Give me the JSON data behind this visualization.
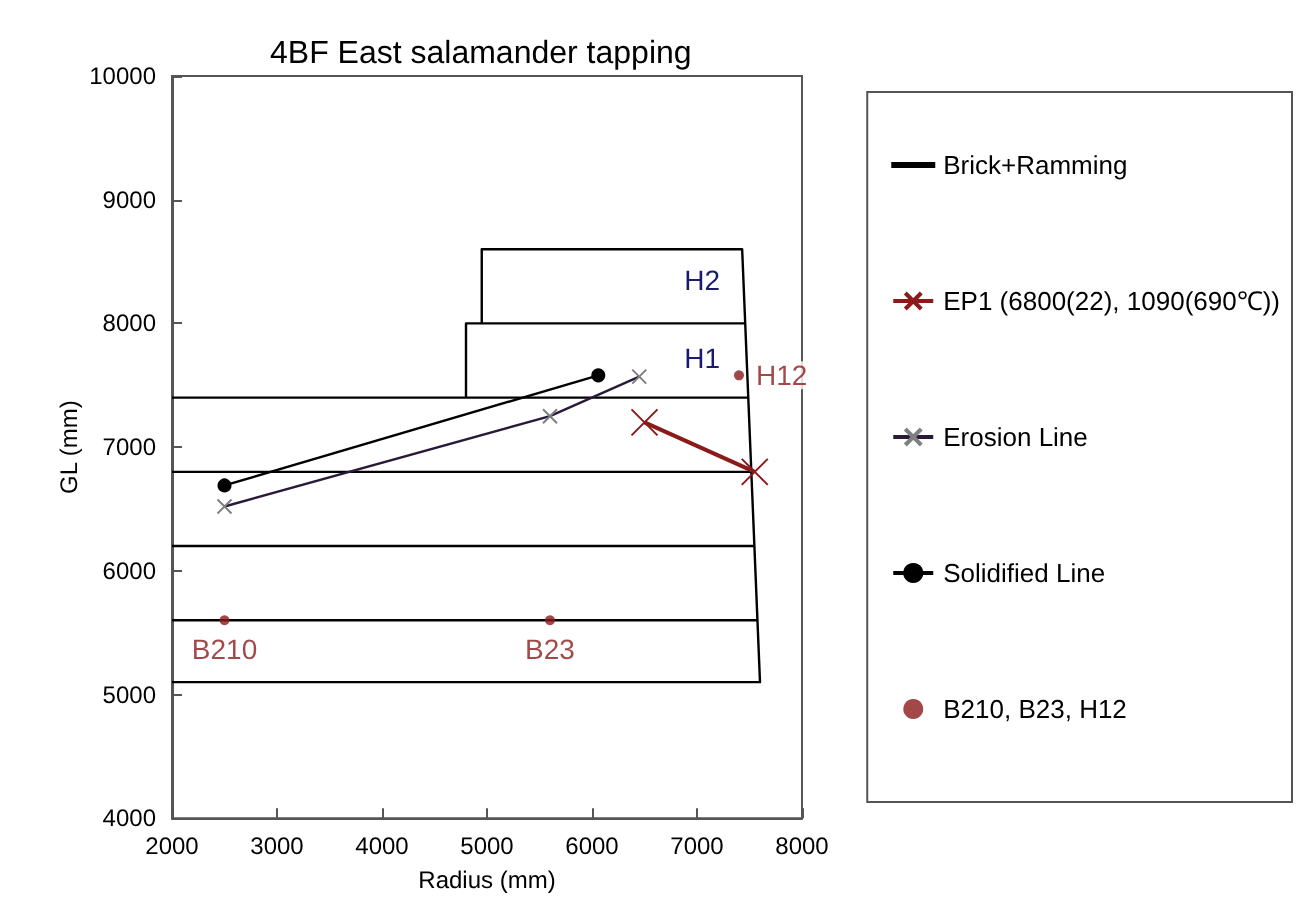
{
  "chart_data": {
    "type": "line",
    "title": "4BF East salamander tapping",
    "xlabel": "Radius (mm)",
    "ylabel": "GL (mm)",
    "xlim": [
      2000,
      8000
    ],
    "xticks": [
      2000,
      3000,
      4000,
      5000,
      6000,
      7000,
      8000
    ],
    "ylim": [
      4000,
      10000
    ],
    "yticks": [
      4000,
      5000,
      6000,
      7000,
      8000,
      9000,
      10000
    ],
    "grid": false,
    "legend": "right",
    "line_style": "solid",
    "series": [
      {
        "name": "Brick+Ramming",
        "color": "#000000",
        "marker": "none",
        "x": [
          2000,
          7600,
          7430,
          4950,
          4950,
          null,
          2000,
          7576,
          null,
          2000,
          7547,
          null,
          2000,
          7517,
          null,
          2000,
          7488,
          null,
          4800,
          4800,
          7459
        ],
        "values": [
          5100,
          5100,
          8600,
          8600,
          8000,
          null,
          5600,
          5600,
          null,
          6200,
          6200,
          null,
          6800,
          6800,
          null,
          7400,
          7400,
          null,
          7400,
          8000,
          8000
        ]
      },
      {
        "name": "EP1 (6800(22), 1090(690℃))",
        "type": "line",
        "color": "#8b1a1a",
        "marker": "cross",
        "x": [
          6500,
          7550
        ],
        "values": [
          7200,
          6800
        ]
      },
      {
        "name": "Erosion Line",
        "type": "line",
        "color": "#2a1a3a",
        "marker": "cross",
        "x": [
          2500,
          5600,
          6450
        ],
        "values": [
          6520,
          7250,
          7570
        ]
      },
      {
        "name": "Solidified Line",
        "type": "line",
        "color": "#000000",
        "marker": "circle",
        "x": [
          2500,
          6060
        ],
        "values": [
          6690,
          7580
        ]
      },
      {
        "name": "B210, B23, H12",
        "type": "scatter",
        "color": "#8b1a1a",
        "marker": "circle",
        "x": [
          2500,
          5600,
          7400
        ],
        "values": [
          5600,
          5600,
          7580
        ]
      }
    ],
    "annotations": [
      {
        "text": "B210",
        "x": 2500,
        "y": 5600
      },
      {
        "text": "B23",
        "x": 5600,
        "y": 5600
      },
      {
        "text": "H12",
        "x": 7400,
        "y": 7580
      },
      "H1",
      "H2"
    ]
  }
}
